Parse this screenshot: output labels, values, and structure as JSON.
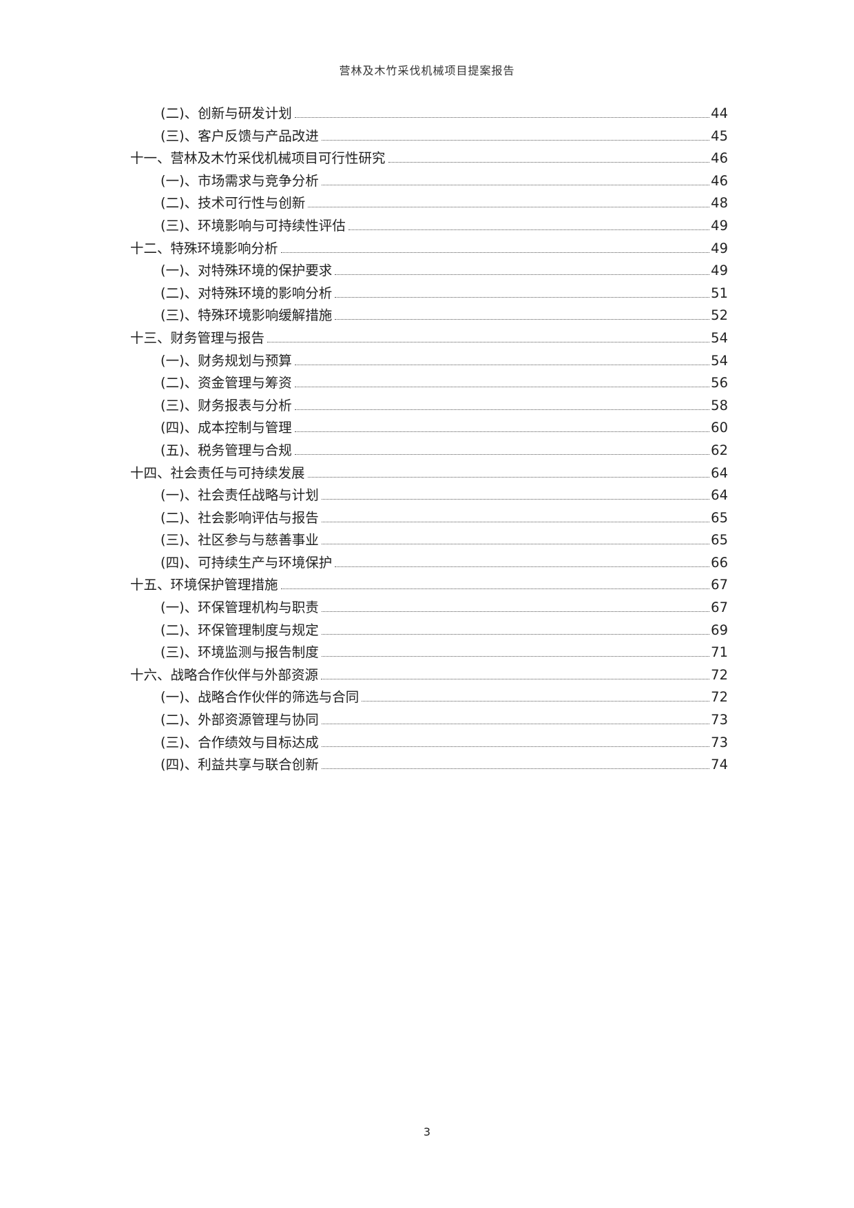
{
  "header": {
    "title": "营林及木竹采伐机械项目提案报告"
  },
  "toc": [
    {
      "level": 2,
      "title": "(二)、创新与研发计划",
      "page": "44"
    },
    {
      "level": 2,
      "title": "(三)、客户反馈与产品改进",
      "page": "45"
    },
    {
      "level": 1,
      "title": "十一、营林及木竹采伐机械项目可行性研究",
      "page": "46"
    },
    {
      "level": 2,
      "title": "(一)、市场需求与竞争分析",
      "page": "46"
    },
    {
      "level": 2,
      "title": "(二)、技术可行性与创新",
      "page": "48"
    },
    {
      "level": 2,
      "title": "(三)、环境影响与可持续性评估",
      "page": "49"
    },
    {
      "level": 1,
      "title": "十二、特殊环境影响分析",
      "page": "49"
    },
    {
      "level": 2,
      "title": "(一)、对特殊环境的保护要求",
      "page": "49"
    },
    {
      "level": 2,
      "title": "(二)、对特殊环境的影响分析",
      "page": "51"
    },
    {
      "level": 2,
      "title": "(三)、特殊环境影响缓解措施",
      "page": "52"
    },
    {
      "level": 1,
      "title": "十三、财务管理与报告",
      "page": "54"
    },
    {
      "level": 2,
      "title": "(一)、财务规划与预算",
      "page": "54"
    },
    {
      "level": 2,
      "title": "(二)、资金管理与筹资",
      "page": "56"
    },
    {
      "level": 2,
      "title": "(三)、财务报表与分析",
      "page": "58"
    },
    {
      "level": 2,
      "title": "(四)、成本控制与管理",
      "page": "60"
    },
    {
      "level": 2,
      "title": "(五)、税务管理与合规",
      "page": "62"
    },
    {
      "level": 1,
      "title": "十四、社会责任与可持续发展",
      "page": "64"
    },
    {
      "level": 2,
      "title": "(一)、社会责任战略与计划",
      "page": "64"
    },
    {
      "level": 2,
      "title": "(二)、社会影响评估与报告",
      "page": "65"
    },
    {
      "level": 2,
      "title": "(三)、社区参与与慈善事业",
      "page": "65"
    },
    {
      "level": 2,
      "title": "(四)、可持续生产与环境保护",
      "page": "66"
    },
    {
      "level": 1,
      "title": "十五、环境保护管理措施",
      "page": "67"
    },
    {
      "level": 2,
      "title": "(一)、环保管理机构与职责",
      "page": "67"
    },
    {
      "level": 2,
      "title": "(二)、环保管理制度与规定",
      "page": "69"
    },
    {
      "level": 2,
      "title": "(三)、环境监测与报告制度",
      "page": "71"
    },
    {
      "level": 1,
      "title": "十六、战略合作伙伴与外部资源",
      "page": "72"
    },
    {
      "level": 2,
      "title": "(一)、战略合作伙伴的筛选与合同",
      "page": "72"
    },
    {
      "level": 2,
      "title": "(二)、外部资源管理与协同",
      "page": "73"
    },
    {
      "level": 2,
      "title": "(三)、合作绩效与目标达成",
      "page": "73"
    },
    {
      "level": 2,
      "title": "(四)、利益共享与联合创新",
      "page": "74"
    }
  ],
  "footer": {
    "page_number": "3"
  }
}
